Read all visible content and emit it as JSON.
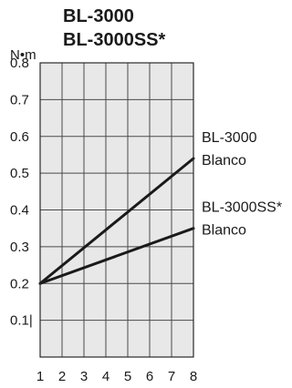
{
  "chart_data": {
    "type": "line",
    "title_lines": [
      "BL-3000",
      "BL-3000SS*"
    ],
    "ylabel": "N•m",
    "xlabel": "",
    "x": [
      1,
      2,
      3,
      4,
      5,
      6,
      7,
      8
    ],
    "x_tick_labels": [
      "1",
      "2",
      "3",
      "4",
      "5",
      "6",
      "7",
      "8"
    ],
    "xlim": [
      1,
      8
    ],
    "ylim": [
      0,
      0.8
    ],
    "y_ticks": [
      0.1,
      0.2,
      0.3,
      0.4,
      0.5,
      0.6,
      0.7,
      0.8
    ],
    "y_tick_labels": [
      "0.1|",
      "0.2",
      "0.3",
      "0.4",
      "0.5",
      "0.6",
      "0.7",
      "0.8"
    ],
    "grid": true,
    "legend_placement": "right",
    "plot_background": "#e8e8e8",
    "series": [
      {
        "label_lines": [
          "BL-3000",
          "Blanco"
        ],
        "color": "#1a1a1a",
        "points": [
          [
            1,
            0.2
          ],
          [
            8,
            0.54
          ]
        ]
      },
      {
        "label_lines": [
          "BL-3000SS*",
          "Blanco"
        ],
        "color": "#1a1a1a",
        "points": [
          [
            1,
            0.2
          ],
          [
            8,
            0.35
          ]
        ]
      }
    ]
  }
}
